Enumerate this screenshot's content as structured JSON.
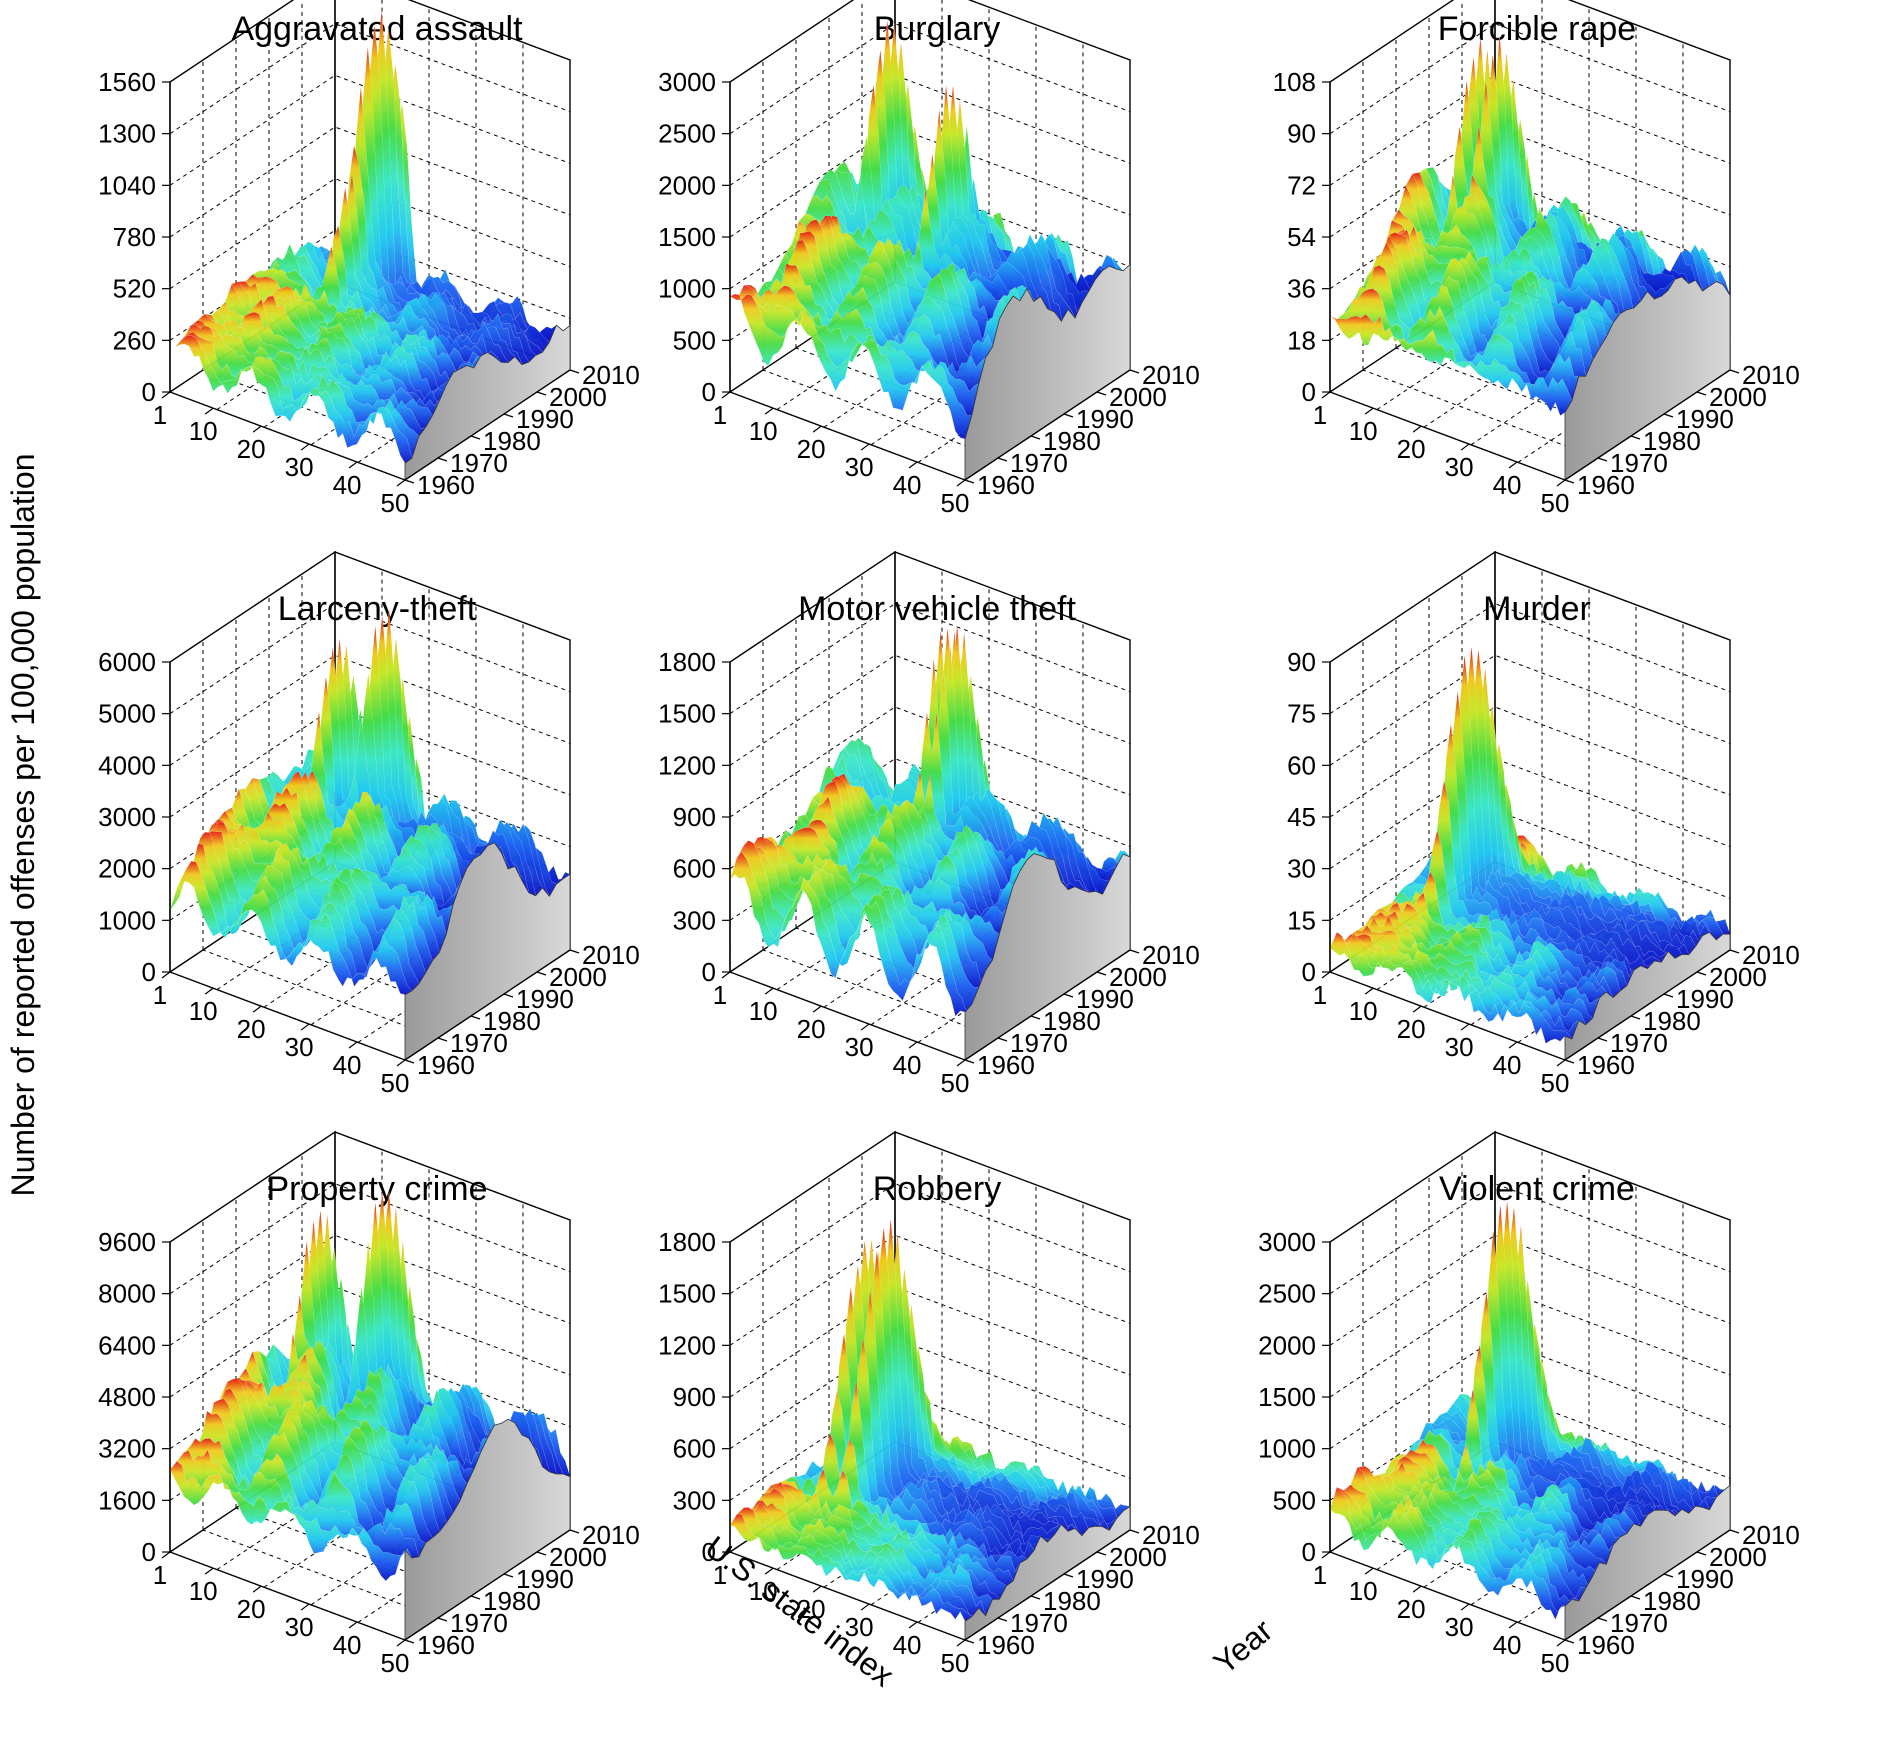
{
  "figure": {
    "ylabel": "Number of reported offenses per 100,000 population",
    "xlabel": "U.S. state index",
    "zlabel": "Year"
  },
  "chart_data": [
    {
      "type": "surface3d",
      "title": "Aggravated assault",
      "zticks": [
        "0",
        "260",
        "520",
        "780",
        "1040",
        "1300",
        "1560"
      ],
      "zmax": 1560,
      "xticks": [
        "1",
        "10",
        "20",
        "30",
        "40",
        "50"
      ],
      "yticks": [
        "1960",
        "1970",
        "1980",
        "1990",
        "2000",
        "2010"
      ],
      "peaks": [
        {
          "state": 15,
          "year": 2003,
          "value": 1560
        },
        {
          "state": 16,
          "year": 1995,
          "value": 900
        }
      ]
    },
    {
      "type": "surface3d",
      "title": "Burglary",
      "zticks": [
        "0",
        "500",
        "1000",
        "1500",
        "2000",
        "2500",
        "3000"
      ],
      "zmax": 3000,
      "xticks": [
        "1",
        "10",
        "20",
        "30",
        "40",
        "50"
      ],
      "yticks": [
        "1960",
        "1970",
        "1980",
        "1990",
        "2000",
        "2010"
      ],
      "peaks": [
        {
          "state": 8,
          "year": 1998,
          "value": 2900
        },
        {
          "state": 26,
          "year": 1990,
          "value": 2800
        }
      ]
    },
    {
      "type": "surface3d",
      "title": "Forcible rape",
      "zticks": [
        "0",
        "18",
        "36",
        "54",
        "72",
        "90",
        "108"
      ],
      "zmax": 108,
      "xticks": [
        "1",
        "10",
        "20",
        "30",
        "40",
        "50"
      ],
      "yticks": [
        "1960",
        "1970",
        "1980",
        "1990",
        "2000",
        "2010"
      ],
      "peaks": [
        {
          "state": 8,
          "year": 1995,
          "value": 100
        },
        {
          "state": 12,
          "year": 1995,
          "value": 103
        }
      ]
    },
    {
      "type": "surface3d",
      "title": "Larceny-theft",
      "zticks": [
        "0",
        "1000",
        "2000",
        "3000",
        "4000",
        "5000",
        "6000"
      ],
      "zmax": 6000,
      "xticks": [
        "1",
        "10",
        "20",
        "30",
        "40",
        "50"
      ],
      "yticks": [
        "1960",
        "1970",
        "1980",
        "1990",
        "2000",
        "2010"
      ],
      "peaks": [
        {
          "state": 18,
          "year": 2000,
          "value": 5900
        },
        {
          "state": 12,
          "year": 1995,
          "value": 5400
        }
      ]
    },
    {
      "type": "surface3d",
      "title": "Motor vehicle theft",
      "zticks": [
        "0",
        "300",
        "600",
        "900",
        "1200",
        "1500",
        "1800"
      ],
      "zmax": 1800,
      "xticks": [
        "1",
        "10",
        "20",
        "30",
        "40",
        "50"
      ],
      "yticks": [
        "1960",
        "1970",
        "1980",
        "1990",
        "2000",
        "2010"
      ],
      "peaks": [
        {
          "state": 22,
          "year": 1995,
          "value": 1800
        },
        {
          "state": 24,
          "year": 1995,
          "value": 1780
        }
      ]
    },
    {
      "type": "surface3d",
      "title": "Murder",
      "zticks": [
        "0",
        "15",
        "30",
        "45",
        "60",
        "75",
        "90"
      ],
      "zmax": 90,
      "xticks": [
        "1",
        "10",
        "20",
        "30",
        "40",
        "50"
      ],
      "yticks": [
        "1960",
        "1970",
        "1980",
        "1990",
        "2000",
        "2010"
      ],
      "peaks": [
        {
          "state": 9,
          "year": 1991,
          "value": 80
        }
      ]
    },
    {
      "type": "surface3d",
      "title": "Property crime",
      "zticks": [
        "0",
        "1600",
        "3200",
        "4800",
        "6400",
        "8000",
        "9600"
      ],
      "zmax": 9600,
      "xticks": [
        "1",
        "10",
        "20",
        "30",
        "40",
        "50"
      ],
      "yticks": [
        "1960",
        "1970",
        "1980",
        "1990",
        "2000",
        "2010"
      ],
      "peaks": [
        {
          "state": 18,
          "year": 2000,
          "value": 9600
        },
        {
          "state": 8,
          "year": 1995,
          "value": 8600
        }
      ]
    },
    {
      "type": "surface3d",
      "title": "Robbery",
      "zticks": [
        "0",
        "300",
        "600",
        "900",
        "1200",
        "1500",
        "1800"
      ],
      "zmax": 1800,
      "xticks": [
        "1",
        "10",
        "20",
        "30",
        "40",
        "50"
      ],
      "yticks": [
        "1960",
        "1970",
        "1980",
        "1990",
        "2000",
        "2010"
      ],
      "peaks": [
        {
          "state": 9,
          "year": 1990,
          "value": 1550
        },
        {
          "state": 13,
          "year": 1990,
          "value": 1650
        }
      ]
    },
    {
      "type": "surface3d",
      "title": "Violent crime",
      "zticks": [
        "0",
        "500",
        "1000",
        "1500",
        "2000",
        "2500",
        "3000"
      ],
      "zmax": 3000,
      "xticks": [
        "1",
        "10",
        "20",
        "30",
        "40",
        "50"
      ],
      "yticks": [
        "1960",
        "1970",
        "1980",
        "1990",
        "2000",
        "2010"
      ],
      "peaks": [
        {
          "state": 15,
          "year": 1993,
          "value": 3000
        }
      ]
    }
  ]
}
